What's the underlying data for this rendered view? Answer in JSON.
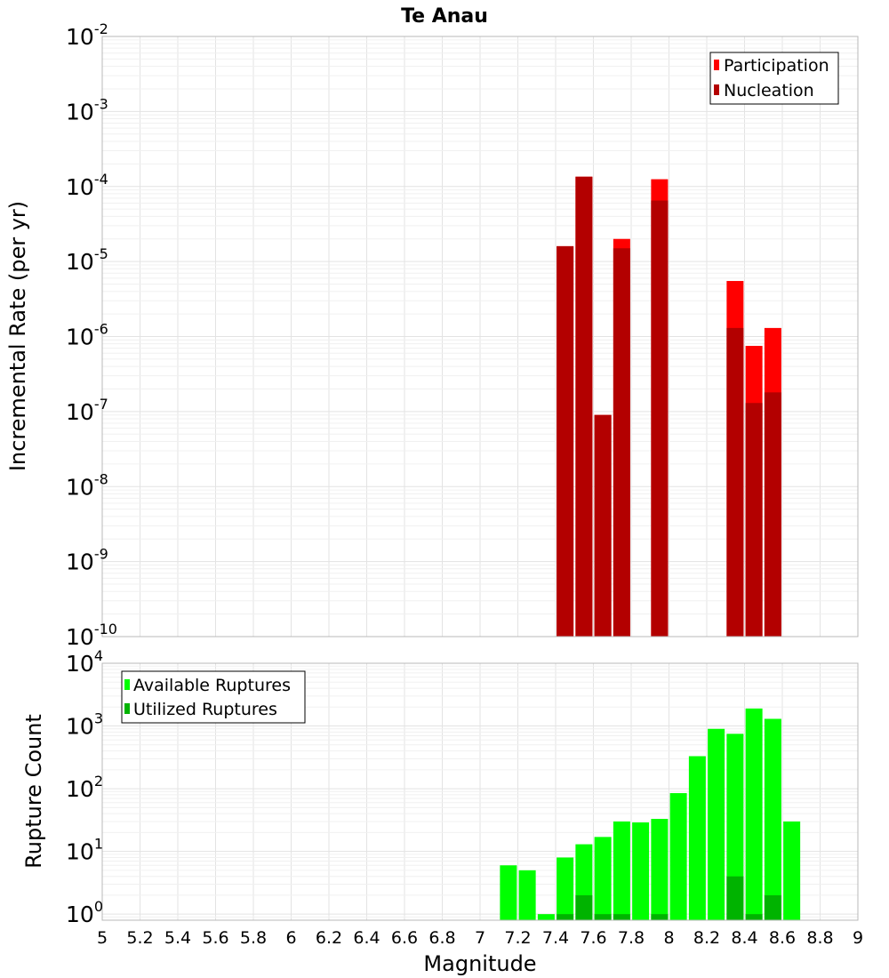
{
  "title": "Te Anau",
  "colors": {
    "participation": "#ff0000",
    "nucleation": "#b30000",
    "available": "#00ff00",
    "utilized": "#00b300"
  },
  "chart_data": [
    {
      "type": "bar",
      "ylabel": "Incremental Rate (per yr)",
      "yscale": "log",
      "ylim": [
        1e-10,
        0.01
      ],
      "xlim": [
        5,
        9
      ],
      "legend_position": "top-right",
      "grid": true,
      "y_ticks": [
        "10^-10",
        "10^-9",
        "10^-8",
        "10^-7",
        "10^-6",
        "10^-5",
        "10^-4",
        "10^-3",
        "10^-2"
      ],
      "x": [
        7.45,
        7.55,
        7.65,
        7.75,
        7.95,
        8.35,
        8.45,
        8.55
      ],
      "series": [
        {
          "name": "Participation",
          "values": [
            1.6e-05,
            0.000135,
            9e-08,
            2e-05,
            0.000125,
            5.5e-06,
            7.5e-07,
            1.3e-06
          ]
        },
        {
          "name": "Nucleation",
          "values": [
            1.6e-05,
            0.000135,
            9e-08,
            1.5e-05,
            6.5e-05,
            1.3e-06,
            1.3e-07,
            1.8e-07
          ]
        }
      ]
    },
    {
      "type": "bar",
      "xlabel": "Magnitude",
      "ylabel": "Rupture Count",
      "yscale": "log",
      "ylim": [
        0.8,
        10000
      ],
      "xlim": [
        5,
        9
      ],
      "legend_position": "top-left",
      "grid": true,
      "x_ticks": [
        "5",
        "5.2",
        "5.4",
        "5.6",
        "5.8",
        "6",
        "6.2",
        "6.4",
        "6.6",
        "6.8",
        "7",
        "7.2",
        "7.4",
        "7.6",
        "7.8",
        "8",
        "8.2",
        "8.4",
        "8.6",
        "8.8",
        "9"
      ],
      "y_ticks": [
        "10^0",
        "10^1",
        "10^2",
        "10^3",
        "10^4"
      ],
      "x": [
        7.15,
        7.25,
        7.35,
        7.45,
        7.55,
        7.65,
        7.75,
        7.85,
        7.95,
        8.05,
        8.15,
        8.25,
        8.35,
        8.45,
        8.55,
        8.65
      ],
      "series": [
        {
          "name": "Available Ruptures",
          "values": [
            6,
            5,
            1,
            8,
            13,
            17,
            30,
            29,
            33,
            85,
            330,
            900,
            750,
            1900,
            1300,
            30
          ]
        },
        {
          "name": "Utilized Ruptures",
          "values": [
            0,
            0,
            0,
            1,
            2,
            1,
            1,
            0,
            1,
            0,
            0,
            0,
            4,
            1,
            2,
            0
          ]
        }
      ]
    }
  ]
}
